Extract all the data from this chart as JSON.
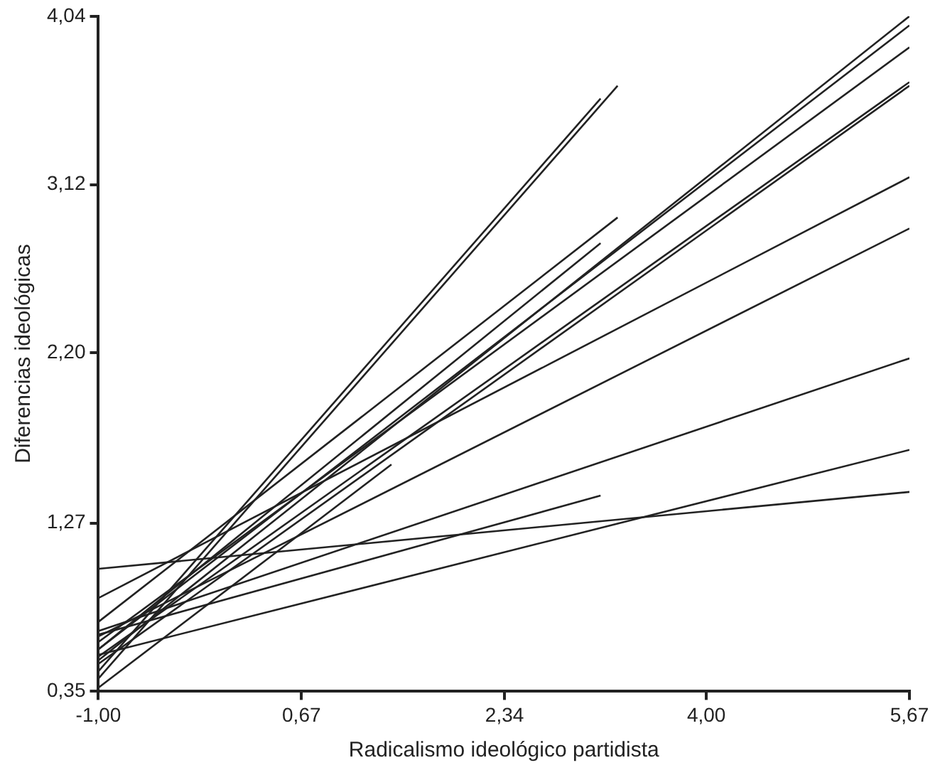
{
  "chart_data": {
    "type": "line",
    "xlabel": "Radicalismo ideológico partidista",
    "ylabel": "Diferencias ideológicas",
    "xlim": [
      -1,
      5.67
    ],
    "ylim": [
      0.35,
      4.04
    ],
    "xticks": [
      {
        "value": -1,
        "label": "-1,00"
      },
      {
        "value": 0.67,
        "label": "0,67"
      },
      {
        "value": 2.34,
        "label": "2,34"
      },
      {
        "value": 4,
        "label": "4,00"
      },
      {
        "value": 5.67,
        "label": "5,67"
      }
    ],
    "yticks": [
      {
        "value": 0.35,
        "label": "0,35"
      },
      {
        "value": 1.27,
        "label": "1,27"
      },
      {
        "value": 2.2,
        "label": "2,20"
      },
      {
        "value": 3.12,
        "label": "3,12"
      },
      {
        "value": 4.04,
        "label": "4,04"
      }
    ],
    "grid": false,
    "legend": false,
    "marker": "none",
    "line_style": "solid",
    "series": [
      {
        "color": "#222222",
        "x": [
          -1,
          5.67
        ],
        "values": [
          0.52,
          4.04
        ]
      },
      {
        "color": "#222222",
        "x": [
          -1,
          5.67
        ],
        "values": [
          0.58,
          3.99
        ]
      },
      {
        "color": "#222222",
        "x": [
          -1,
          5.67
        ],
        "values": [
          0.62,
          3.87
        ]
      },
      {
        "color": "#222222",
        "x": [
          -1,
          5.67
        ],
        "values": [
          0.54,
          3.68
        ]
      },
      {
        "color": "#222222",
        "x": [
          -1,
          5.67
        ],
        "values": [
          0.5,
          3.66
        ]
      },
      {
        "color": "#222222",
        "x": [
          -1,
          5.67
        ],
        "values": [
          0.86,
          3.16
        ]
      },
      {
        "color": "#222222",
        "x": [
          -1,
          5.67
        ],
        "values": [
          0.65,
          2.88
        ]
      },
      {
        "color": "#222222",
        "x": [
          -1,
          5.67
        ],
        "values": [
          0.68,
          2.17
        ]
      },
      {
        "color": "#222222",
        "x": [
          -1,
          5.67
        ],
        "values": [
          0.55,
          1.67
        ]
      },
      {
        "color": "#222222",
        "x": [
          -1,
          5.67
        ],
        "values": [
          1.02,
          1.44
        ]
      },
      {
        "color": "#222222",
        "x": [
          -1,
          3.27
        ],
        "values": [
          0.42,
          3.66
        ]
      },
      {
        "color": "#222222",
        "x": [
          -1,
          3.13
        ],
        "values": [
          0.46,
          3.59
        ]
      },
      {
        "color": "#222222",
        "x": [
          -1,
          3.27
        ],
        "values": [
          0.73,
          2.94
        ]
      },
      {
        "color": "#222222",
        "x": [
          -1,
          3.13
        ],
        "values": [
          0.58,
          2.8
        ]
      },
      {
        "color": "#222222",
        "x": [
          -1,
          1.41
        ],
        "values": [
          0.37,
          1.59
        ]
      },
      {
        "color": "#222222",
        "x": [
          -1,
          3.13
        ],
        "values": [
          0.66,
          1.42
        ]
      }
    ]
  }
}
